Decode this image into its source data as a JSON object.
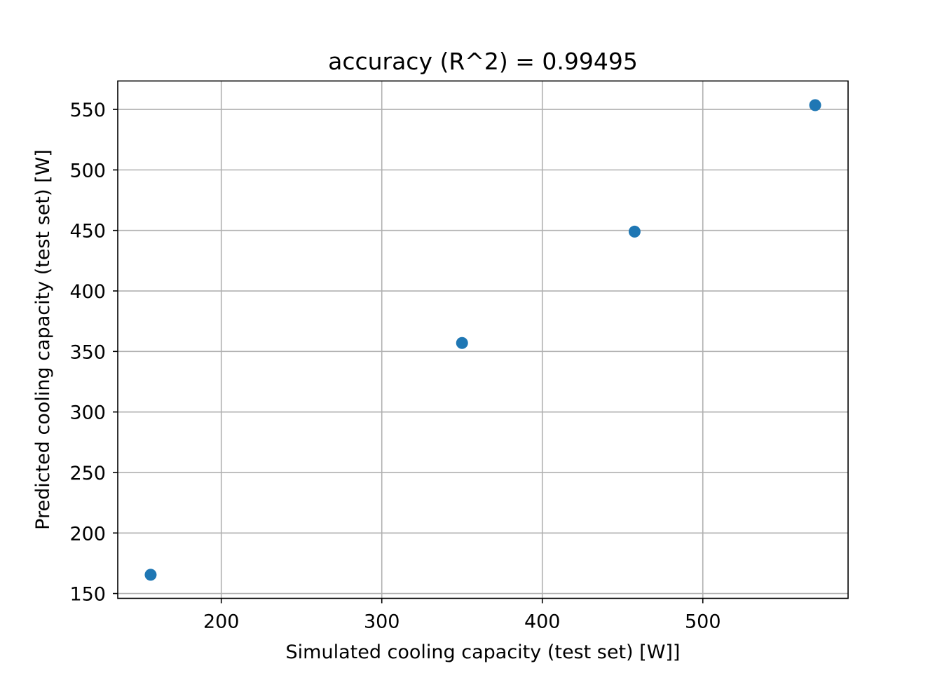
{
  "chart_data": {
    "type": "scatter",
    "title": "accuracy (R^2) =  0.99495",
    "xlabel": "Simulated cooling capacity (test set) [W]]",
    "ylabel": "Predicted cooling capacity (test set) [W]",
    "xlim": [
      135.5,
      590.5
    ],
    "ylim": [
      146,
      573.5
    ],
    "xticks": [
      200,
      300,
      400,
      500
    ],
    "yticks": [
      150,
      200,
      250,
      300,
      350,
      400,
      450,
      500,
      550
    ],
    "grid": true,
    "legend": "none",
    "marker_color": "#1f77b4",
    "points": [
      {
        "x": 156,
        "y": 165.5
      },
      {
        "x": 350,
        "y": 357
      },
      {
        "x": 457.5,
        "y": 449
      },
      {
        "x": 570,
        "y": 553.5
      }
    ]
  }
}
